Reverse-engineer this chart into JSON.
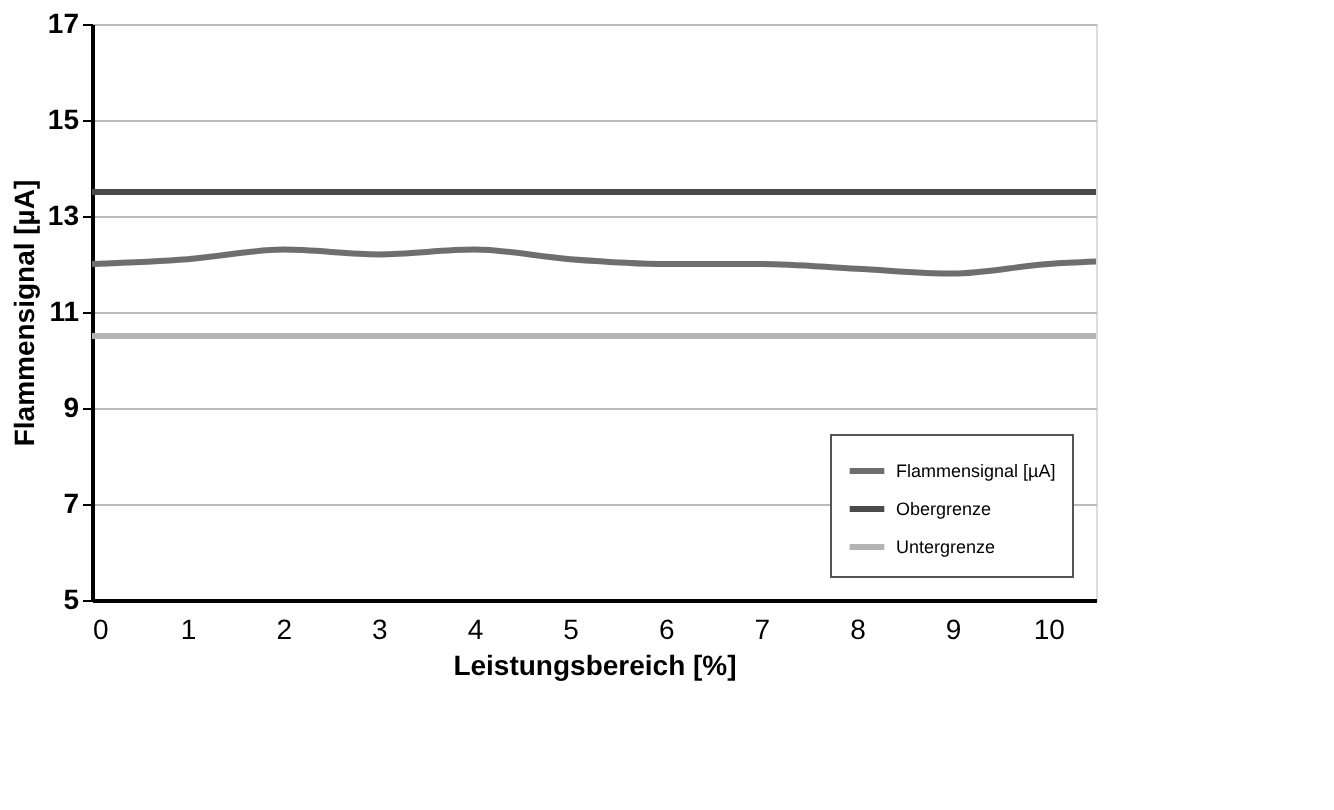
{
  "chart_data": {
    "type": "line",
    "xlabel": "Leistungsbereich [%]",
    "ylabel": "Flammensignal [µA]",
    "xlim": [
      0,
      10.5
    ],
    "xticks": [
      0,
      1,
      2,
      3,
      4,
      5,
      6,
      7,
      8,
      9,
      10
    ],
    "ylim": [
      5,
      17
    ],
    "yticks": [
      5,
      7,
      9,
      11,
      13,
      15,
      17
    ],
    "grid": "y",
    "legend": "bottom right",
    "marker": "none",
    "line_style": "solid",
    "series": [
      {
        "name": "Flammensignal [µA]",
        "color": "#6e6e6e",
        "x": [
          0,
          1,
          2,
          3,
          4,
          5,
          6,
          7,
          8,
          9,
          10,
          10.5
        ],
        "values": [
          12.0,
          12.1,
          12.3,
          12.2,
          12.3,
          12.1,
          12.0,
          12.0,
          11.9,
          11.8,
          12.0,
          12.05
        ]
      },
      {
        "name": "Obergrenze",
        "color": "#4a4a4a",
        "x": [
          0,
          10.5
        ],
        "values": [
          13.5,
          13.5
        ]
      },
      {
        "name": "Untergrenze",
        "color": "#b4b4b4",
        "x": [
          0,
          10.5
        ],
        "values": [
          10.5,
          10.5
        ]
      }
    ]
  }
}
